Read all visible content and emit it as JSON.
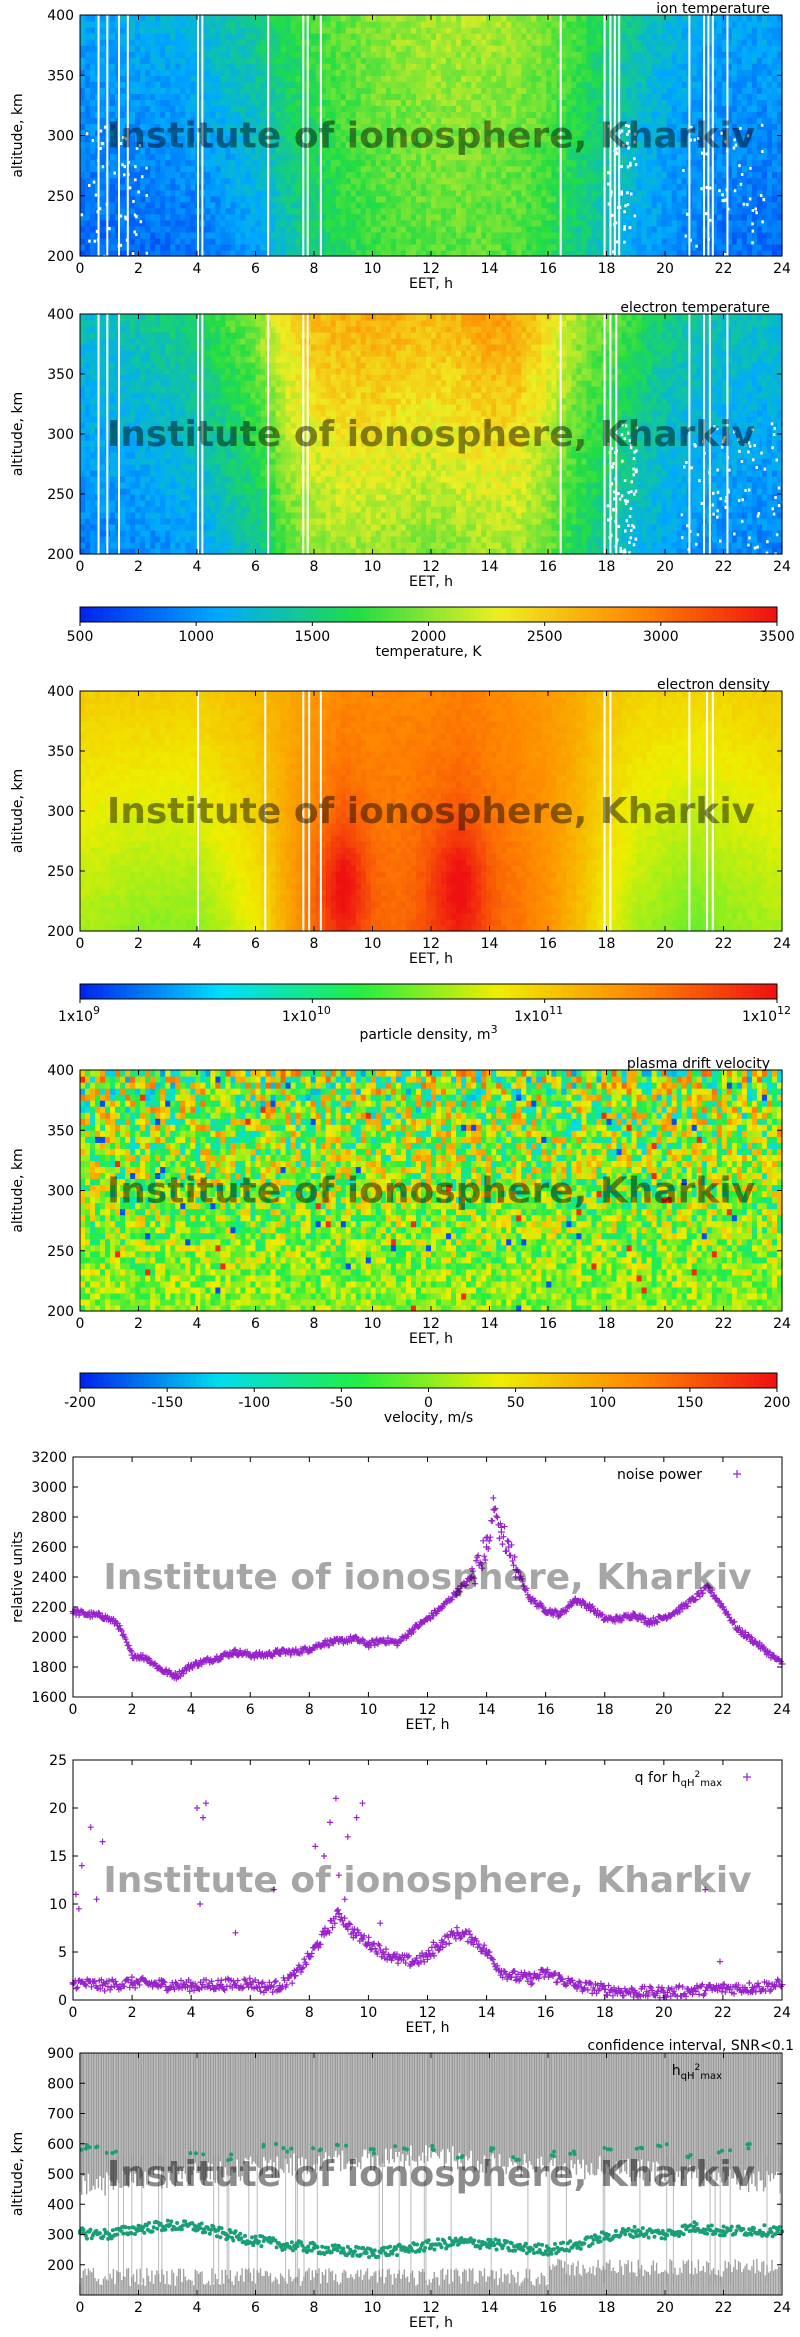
{
  "watermark": "Institute of ionosphere, Kharkiv",
  "colors": {
    "temp_scale": [
      "#0022ee",
      "#00aaff",
      "#22dd44",
      "#eeee22",
      "#ff8800",
      "#ee1111"
    ],
    "density_scale": [
      "#0022ee",
      "#00ddff",
      "#22ee44",
      "#eeee00",
      "#ff8800",
      "#ee1111"
    ],
    "velocity_scale": [
      "#0022ee",
      "#00ddee",
      "#22ee44",
      "#eeee00",
      "#ff8800",
      "#ee1111"
    ],
    "noise_marker": "#9922cc",
    "q_marker": "#9922cc",
    "ci_band": "#8a8a8a",
    "ci_points": "#1a9e77"
  },
  "chart_data": [
    {
      "id": "ion_temperature",
      "type": "heatmap",
      "title": "ion temperature",
      "xlabel": "EET, h",
      "ylabel": "altitude, km",
      "xlim": [
        0,
        24
      ],
      "ylim": [
        200,
        400
      ],
      "xticks": [
        0,
        2,
        4,
        6,
        8,
        10,
        12,
        14,
        16,
        18,
        20,
        22,
        24
      ],
      "yticks": [
        200,
        250,
        300,
        350,
        400
      ],
      "value_range": [
        500,
        3500
      ],
      "profile_hours": [
        0,
        2,
        4,
        6,
        7,
        8,
        9,
        10,
        11,
        12,
        13,
        14,
        15,
        16,
        17,
        18,
        19,
        20,
        21,
        22,
        24
      ],
      "profile_low_km": [
        800,
        800,
        850,
        1050,
        1300,
        1500,
        1650,
        1750,
        1800,
        1850,
        1850,
        1850,
        1800,
        1700,
        1500,
        1300,
        1100,
        1000,
        900,
        850,
        800
      ],
      "profile_high_km": [
        1100,
        1150,
        1250,
        1500,
        1700,
        1800,
        1900,
        2000,
        2050,
        2100,
        2100,
        2100,
        2050,
        1950,
        1800,
        1600,
        1400,
        1250,
        1150,
        1100,
        1100
      ]
    },
    {
      "id": "electron_temperature",
      "type": "heatmap",
      "title": "electron temperature",
      "xlabel": "EET, h",
      "ylabel": "altitude, km",
      "xlim": [
        0,
        24
      ],
      "ylim": [
        200,
        400
      ],
      "xticks": [
        0,
        2,
        4,
        6,
        8,
        10,
        12,
        14,
        16,
        18,
        20,
        22,
        24
      ],
      "yticks": [
        200,
        250,
        300,
        350,
        400
      ],
      "value_range": [
        500,
        3500
      ],
      "profile_hours": [
        0,
        2,
        4,
        6,
        7,
        8,
        9,
        10,
        11,
        12,
        13,
        14,
        15,
        16,
        17,
        18,
        19,
        20,
        21,
        22,
        24
      ],
      "profile_low_km": [
        900,
        950,
        1050,
        1400,
        1800,
        2000,
        2050,
        2050,
        2000,
        1950,
        2000,
        2050,
        2050,
        1900,
        1600,
        1400,
        1200,
        1100,
        1000,
        950,
        900
      ],
      "profile_high_km": [
        1300,
        1400,
        1600,
        2000,
        2400,
        2600,
        2650,
        2700,
        2650,
        2600,
        2650,
        2800,
        2700,
        2400,
        2100,
        1900,
        1700,
        1500,
        1400,
        1350,
        1300
      ]
    },
    {
      "id": "temperature_colorbar",
      "type": "colorbar",
      "label": "temperature, K",
      "range": [
        500,
        3500
      ],
      "ticks": [
        "500",
        "1000",
        "1500",
        "2000",
        "2500",
        "3000",
        "3500"
      ]
    },
    {
      "id": "electron_density",
      "type": "heatmap",
      "title": "electron density",
      "xlabel": "EET, h",
      "ylabel": "altitude, km",
      "xlim": [
        0,
        24
      ],
      "ylim": [
        200,
        400
      ],
      "xticks": [
        0,
        2,
        4,
        6,
        8,
        10,
        12,
        14,
        16,
        18,
        20,
        22,
        24
      ],
      "yticks": [
        200,
        250,
        300,
        350,
        400
      ],
      "value_range_log10": [
        9,
        12
      ],
      "peak_hours": [
        9,
        13
      ],
      "peak_altitude_km": 240,
      "profile_hours": [
        0,
        2,
        4,
        6,
        7,
        8,
        9,
        10,
        11,
        12,
        13,
        14,
        15,
        16,
        17,
        18,
        19,
        20,
        21,
        22,
        24
      ],
      "profile_low_km": [
        10.6,
        10.5,
        10.5,
        10.8,
        11.2,
        11.5,
        11.75,
        11.55,
        11.55,
        11.7,
        11.75,
        11.6,
        11.5,
        11.35,
        11.1,
        10.8,
        10.6,
        10.5,
        10.4,
        10.5,
        10.6
      ],
      "profile_high_km": [
        11.0,
        11.0,
        11.0,
        11.1,
        11.2,
        11.3,
        11.4,
        11.4,
        11.4,
        11.4,
        11.45,
        11.4,
        11.35,
        11.3,
        11.2,
        11.05,
        10.95,
        10.95,
        10.95,
        10.95,
        11.0
      ]
    },
    {
      "id": "density_colorbar",
      "type": "colorbar",
      "label": "particle density, m",
      "label_sup": "3",
      "range_log10": [
        9,
        12
      ],
      "ticks": [
        {
          "base": "1x10",
          "exp": "9"
        },
        {
          "base": "1x10",
          "exp": "10"
        },
        {
          "base": "1x10",
          "exp": "11"
        },
        {
          "base": "1x10",
          "exp": "12"
        }
      ]
    },
    {
      "id": "plasma_drift_velocity",
      "type": "heatmap",
      "title": "plasma drift velocity",
      "xlabel": "EET, h",
      "ylabel": "altitude, km",
      "xlim": [
        0,
        24
      ],
      "ylim": [
        200,
        400
      ],
      "xticks": [
        0,
        2,
        4,
        6,
        8,
        10,
        12,
        14,
        16,
        18,
        20,
        22,
        24
      ],
      "yticks": [
        200,
        250,
        300,
        350,
        400
      ],
      "value_range": [
        -200,
        200
      ]
    },
    {
      "id": "velocity_colorbar",
      "type": "colorbar",
      "label": "velocity, m/s",
      "range": [
        -200,
        200
      ],
      "ticks": [
        "-200",
        "-150",
        "-100",
        "-50",
        "0",
        "50",
        "100",
        "150",
        "200"
      ]
    },
    {
      "id": "noise_power",
      "type": "scatter",
      "legend": "noise power",
      "xlabel": "EET, h",
      "ylabel": "relative units",
      "xlim": [
        0,
        24
      ],
      "ylim": [
        1600,
        3200
      ],
      "xticks": [
        0,
        2,
        4,
        6,
        8,
        10,
        12,
        14,
        16,
        18,
        20,
        22,
        24
      ],
      "yticks": [
        1600,
        1800,
        2000,
        2200,
        2400,
        2600,
        2800,
        3000,
        3200
      ],
      "x": [
        0,
        0.5,
        1,
        1.5,
        2,
        2.5,
        3,
        3.5,
        4,
        4.5,
        5,
        5.5,
        6,
        6.5,
        7,
        7.5,
        8,
        8.5,
        9,
        9.5,
        10,
        10.5,
        11,
        11.5,
        12,
        12.5,
        13,
        13.5,
        14,
        14.25,
        14.5,
        14.75,
        15,
        15.5,
        16,
        16.5,
        17,
        17.5,
        18,
        18.5,
        19,
        19.5,
        20,
        20.5,
        21,
        21.5,
        22,
        22.5,
        23,
        23.5,
        24
      ],
      "y": [
        2170,
        2150,
        2140,
        2090,
        1880,
        1860,
        1780,
        1740,
        1810,
        1840,
        1870,
        1900,
        1880,
        1880,
        1900,
        1900,
        1920,
        1960,
        1970,
        1990,
        1950,
        1980,
        1960,
        2050,
        2120,
        2200,
        2300,
        2400,
        2600,
        2850,
        2700,
        2600,
        2450,
        2250,
        2180,
        2150,
        2250,
        2200,
        2120,
        2120,
        2150,
        2100,
        2130,
        2180,
        2250,
        2330,
        2200,
        2050,
        1980,
        1900,
        1820
      ]
    },
    {
      "id": "q_for_hmax",
      "type": "scatter",
      "legend": "q for h",
      "legend_sub1": "qH",
      "legend_sup": "2",
      "legend_sub2": "max",
      "xlabel": "EET, h",
      "xlim": [
        0,
        24
      ],
      "ylim": [
        0,
        25
      ],
      "xticks": [
        0,
        2,
        4,
        6,
        8,
        10,
        12,
        14,
        16,
        18,
        20,
        22,
        24
      ],
      "yticks": [
        0,
        5,
        10,
        15,
        20,
        25
      ],
      "x": [
        0,
        1,
        2,
        3,
        4,
        5,
        6,
        6.5,
        7,
        7.5,
        8,
        8.5,
        9,
        9.5,
        10,
        10.5,
        11,
        11.5,
        12,
        12.5,
        13,
        13.5,
        14,
        14.5,
        15,
        15.5,
        16,
        16.5,
        17,
        18,
        19,
        20,
        21,
        22,
        23,
        24
      ],
      "y": [
        1.8,
        1.5,
        1.8,
        1.6,
        1.5,
        1.6,
        1.8,
        1.3,
        1.5,
        2.5,
        4.5,
        6.8,
        9.0,
        7.0,
        6.0,
        5.0,
        4.2,
        4.0,
        4.5,
        6.0,
        7.0,
        6.5,
        5.0,
        3.0,
        2.4,
        2.2,
        2.8,
        2.2,
        1.5,
        1.1,
        0.8,
        0.8,
        1.0,
        1.2,
        1.3,
        1.6
      ]
    },
    {
      "id": "confidence_interval",
      "type": "scatter",
      "title": "confidence interval, SNR<0.1",
      "legend": "h",
      "legend_sub1": "qH",
      "legend_sup": "2",
      "legend_sub2": "max",
      "xlabel": "EET, h",
      "ylabel": "altitude, km",
      "xlim": [
        0,
        24
      ],
      "ylim": [
        100,
        900
      ],
      "xticks": [
        0,
        2,
        4,
        6,
        8,
        10,
        12,
        14,
        16,
        18,
        20,
        22,
        24
      ],
      "yticks": [
        200,
        300,
        400,
        500,
        600,
        700,
        800,
        900
      ],
      "x": [
        0,
        1,
        2,
        3,
        4,
        5,
        6,
        7,
        8,
        9,
        10,
        11,
        12,
        13,
        14,
        15,
        16,
        17,
        18,
        19,
        20,
        21,
        22,
        23,
        24
      ],
      "y": [
        305,
        300,
        320,
        330,
        325,
        300,
        280,
        265,
        255,
        245,
        240,
        250,
        265,
        275,
        270,
        255,
        250,
        265,
        295,
        310,
        300,
        325,
        310,
        315,
        310
      ],
      "upper_band_x": [
        0,
        2,
        4,
        6,
        8,
        10,
        12,
        14,
        16,
        18,
        20,
        22,
        24
      ],
      "upper_band_y": [
        500,
        520,
        540,
        560,
        580,
        590,
        600,
        580,
        560,
        560,
        540,
        520,
        510
      ],
      "upper_points_x": [
        0,
        0.5,
        1,
        4,
        5,
        6.5,
        7,
        8,
        9,
        10,
        11,
        12,
        13,
        14,
        15,
        16,
        17,
        18,
        19,
        20,
        21,
        22,
        23
      ],
      "upper_points_y": [
        590,
        585,
        575,
        560,
        555,
        590,
        580,
        585,
        590,
        575,
        590,
        585,
        560,
        580,
        550,
        565,
        570,
        590,
        585,
        595,
        560,
        575,
        590
      ]
    }
  ]
}
